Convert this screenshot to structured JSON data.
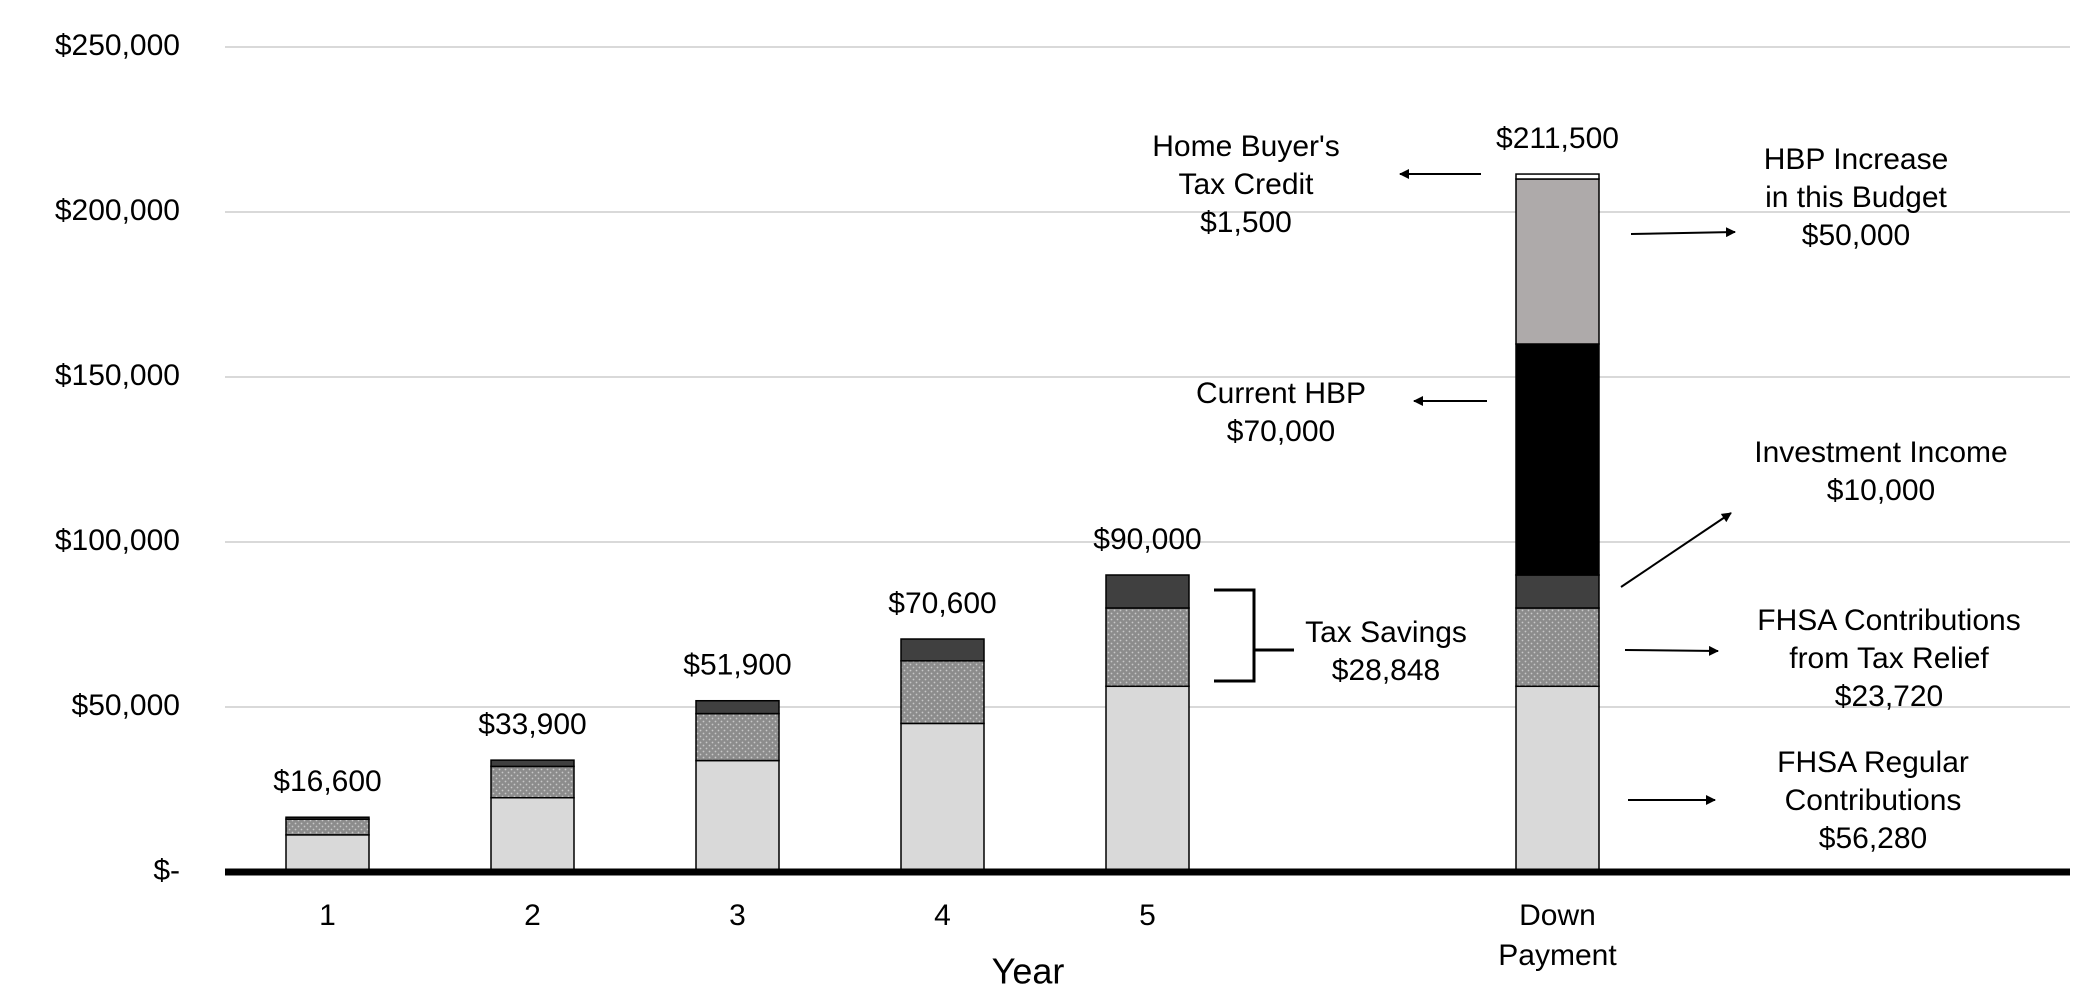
{
  "chart_data": {
    "type": "stacked-bar",
    "x_label": "Year",
    "categories": [
      "1",
      "2",
      "3",
      "4",
      "5",
      null,
      "Down Payment"
    ],
    "series": [
      {
        "color": "#d9d9d9",
        "pattern": "solid",
        "values": [
          11256,
          22512,
          33768,
          45024,
          56280,
          null,
          56280
        ]
      },
      {
        "color": "#8c8c8c",
        "pattern": "dotted",
        "values": [
          4744,
          9488,
          14232,
          18976,
          23720,
          null,
          23720
        ]
      },
      {
        "color": "#404040",
        "pattern": "solid",
        "values": [
          600,
          1900,
          3900,
          6600,
          10000,
          null,
          10000
        ]
      },
      {
        "color": "#000000",
        "pattern": "solid",
        "values": [
          null,
          null,
          null,
          null,
          null,
          null,
          70000
        ]
      },
      {
        "color": "#aeaaaa",
        "pattern": "solid",
        "values": [
          null,
          null,
          null,
          null,
          null,
          null,
          50000
        ]
      },
      {
        "color": "#ffffff",
        "pattern": "solid",
        "values": [
          null,
          null,
          null,
          null,
          null,
          null,
          1500
        ]
      }
    ],
    "totals": [
      16600,
      33900,
      51900,
      70600,
      90000,
      null,
      211500
    ],
    "total_labels": [
      "$16,600",
      "$33,900",
      "$51,900",
      "$70,600",
      "$90,000",
      null,
      "$211,500"
    ],
    "annotations": [
      {
        "lines": [
          "Home Buyer's",
          "Tax Credit",
          "$1,500"
        ]
      },
      {
        "lines": [
          "HBP Increase",
          "in this Budget",
          "$50,000"
        ]
      },
      {
        "lines": [
          "Current HBP",
          "$70,000"
        ]
      },
      {
        "lines": [
          "Investment Income",
          "$10,000"
        ]
      },
      {
        "lines": [
          "FHSA Contributions",
          "from Tax Relief",
          "$23,720"
        ]
      },
      {
        "lines": [
          "FHSA Regular",
          "Contributions",
          "$56,280"
        ]
      },
      {
        "lines": [
          "Tax Savings",
          "$28,848"
        ]
      }
    ],
    "ylim": [
      0,
      250000
    ],
    "yticks": [
      {
        "value": 0,
        "label": "$-"
      },
      {
        "value": 50000,
        "label": "$50,000"
      },
      {
        "value": 100000,
        "label": "$100,000"
      },
      {
        "value": 150000,
        "label": "$150,000"
      },
      {
        "value": 200000,
        "label": "$200,000"
      },
      {
        "value": 250000,
        "label": "$250,000"
      }
    ],
    "grid": true
  }
}
